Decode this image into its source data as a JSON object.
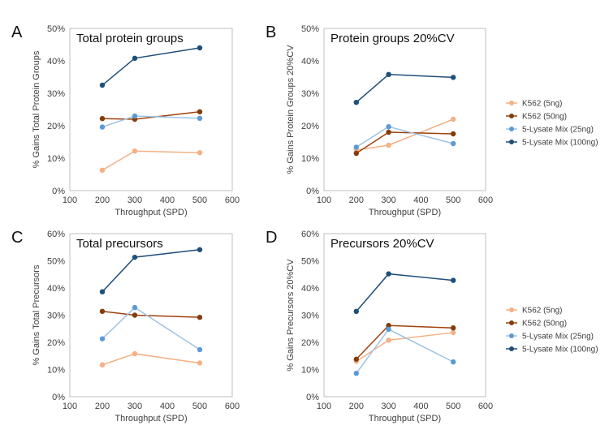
{
  "colors": {
    "K562 (5ng)": "#f4b183",
    "K562 (50ng)": "#a0410d",
    "5-Lysate Mix (25ng)": "#9dc3e6",
    "5-Lysate Mix (100ng)": "#1f4e79"
  },
  "marker_colors": {
    "K562 (5ng)": "#f4b183",
    "K562 (50ng)": "#843c0c",
    "5-Lysate Mix (25ng)": "#5b9bd5",
    "5-Lysate Mix (100ng)": "#1f4e79"
  },
  "chart_data": [
    {
      "panel": "A",
      "type": "line",
      "title": "Total protein groups",
      "xlabel": "Throughput (SPD)",
      "ylabel": "% Gains Total Protein Groups",
      "xlim": [
        100,
        600
      ],
      "xticks": [
        100,
        200,
        300,
        400,
        500,
        600
      ],
      "ylim": [
        0,
        50
      ],
      "yticks": [
        0,
        10,
        20,
        30,
        40,
        50
      ],
      "y_unit": "%",
      "x": [
        200,
        300,
        500
      ],
      "series": [
        {
          "name": "K562 (5ng)",
          "values": [
            6.3,
            12.2,
            11.7
          ]
        },
        {
          "name": "K562 (50ng)",
          "values": [
            22.2,
            22.0,
            24.3
          ]
        },
        {
          "name": "5-Lysate Mix (25ng)",
          "values": [
            19.6,
            23.0,
            22.3
          ]
        },
        {
          "name": "5-Lysate Mix (100ng)",
          "values": [
            32.5,
            40.8,
            44.0
          ]
        }
      ]
    },
    {
      "panel": "B",
      "type": "line",
      "title": "Protein groups 20%CV",
      "xlabel": "Throughput (SPD)",
      "ylabel": "% Gains Protein Groups 20%CV",
      "xlim": [
        100,
        600
      ],
      "xticks": [
        100,
        200,
        300,
        400,
        500,
        600
      ],
      "ylim": [
        0,
        50
      ],
      "yticks": [
        0,
        10,
        20,
        30,
        40,
        50
      ],
      "y_unit": "%",
      "x": [
        200,
        300,
        500
      ],
      "series": [
        {
          "name": "K562 (5ng)",
          "values": [
            12.5,
            14.0,
            22.0
          ]
        },
        {
          "name": "K562 (50ng)",
          "values": [
            11.5,
            18.0,
            17.5
          ]
        },
        {
          "name": "5-Lysate Mix (25ng)",
          "values": [
            13.4,
            19.7,
            14.5
          ]
        },
        {
          "name": "5-Lysate Mix (100ng)",
          "values": [
            27.2,
            35.8,
            34.9
          ]
        }
      ]
    },
    {
      "panel": "C",
      "type": "line",
      "title": "Total precursors",
      "xlabel": "Throughput (SPD)",
      "ylabel": "% Gains Total Precursors",
      "xlim": [
        100,
        600
      ],
      "xticks": [
        100,
        200,
        300,
        400,
        500,
        600
      ],
      "ylim": [
        0,
        60
      ],
      "yticks": [
        0,
        10,
        20,
        30,
        40,
        50,
        60
      ],
      "y_unit": "%",
      "x": [
        200,
        300,
        500
      ],
      "series": [
        {
          "name": "K562 (5ng)",
          "values": [
            11.7,
            15.8,
            12.4
          ]
        },
        {
          "name": "K562 (50ng)",
          "values": [
            31.4,
            30.0,
            29.2
          ]
        },
        {
          "name": "5-Lysate Mix (25ng)",
          "values": [
            21.3,
            32.8,
            17.3
          ]
        },
        {
          "name": "5-Lysate Mix (100ng)",
          "values": [
            38.6,
            51.3,
            54.1
          ]
        }
      ]
    },
    {
      "panel": "D",
      "type": "line",
      "title": "Precursors 20%CV",
      "xlabel": "Throughput (SPD)",
      "ylabel": "% Gains Precursors 20%CV",
      "xlim": [
        100,
        600
      ],
      "xticks": [
        100,
        200,
        300,
        400,
        500,
        600
      ],
      "ylim": [
        0,
        60
      ],
      "yticks": [
        0,
        10,
        20,
        30,
        40,
        50,
        60
      ],
      "y_unit": "%",
      "x": [
        200,
        300,
        500
      ],
      "series": [
        {
          "name": "K562 (5ng)",
          "values": [
            13.0,
            20.8,
            23.6
          ]
        },
        {
          "name": "K562 (50ng)",
          "values": [
            13.8,
            26.2,
            25.3
          ]
        },
        {
          "name": "5-Lysate Mix (25ng)",
          "values": [
            8.6,
            24.8,
            12.8
          ]
        },
        {
          "name": "5-Lysate Mix (100ng)",
          "values": [
            31.4,
            45.2,
            42.8
          ]
        }
      ]
    }
  ],
  "legends": [
    {
      "entries": [
        "K562 (5ng)",
        "K562 (50ng)",
        "5-Lysate Mix (25ng)",
        "5-Lysate Mix (100ng)"
      ]
    },
    {
      "entries": [
        "K562 (5ng)",
        "K562 (50ng)",
        "5-Lysate Mix (25ng)",
        "5-Lysate Mix (100ng)"
      ]
    }
  ]
}
